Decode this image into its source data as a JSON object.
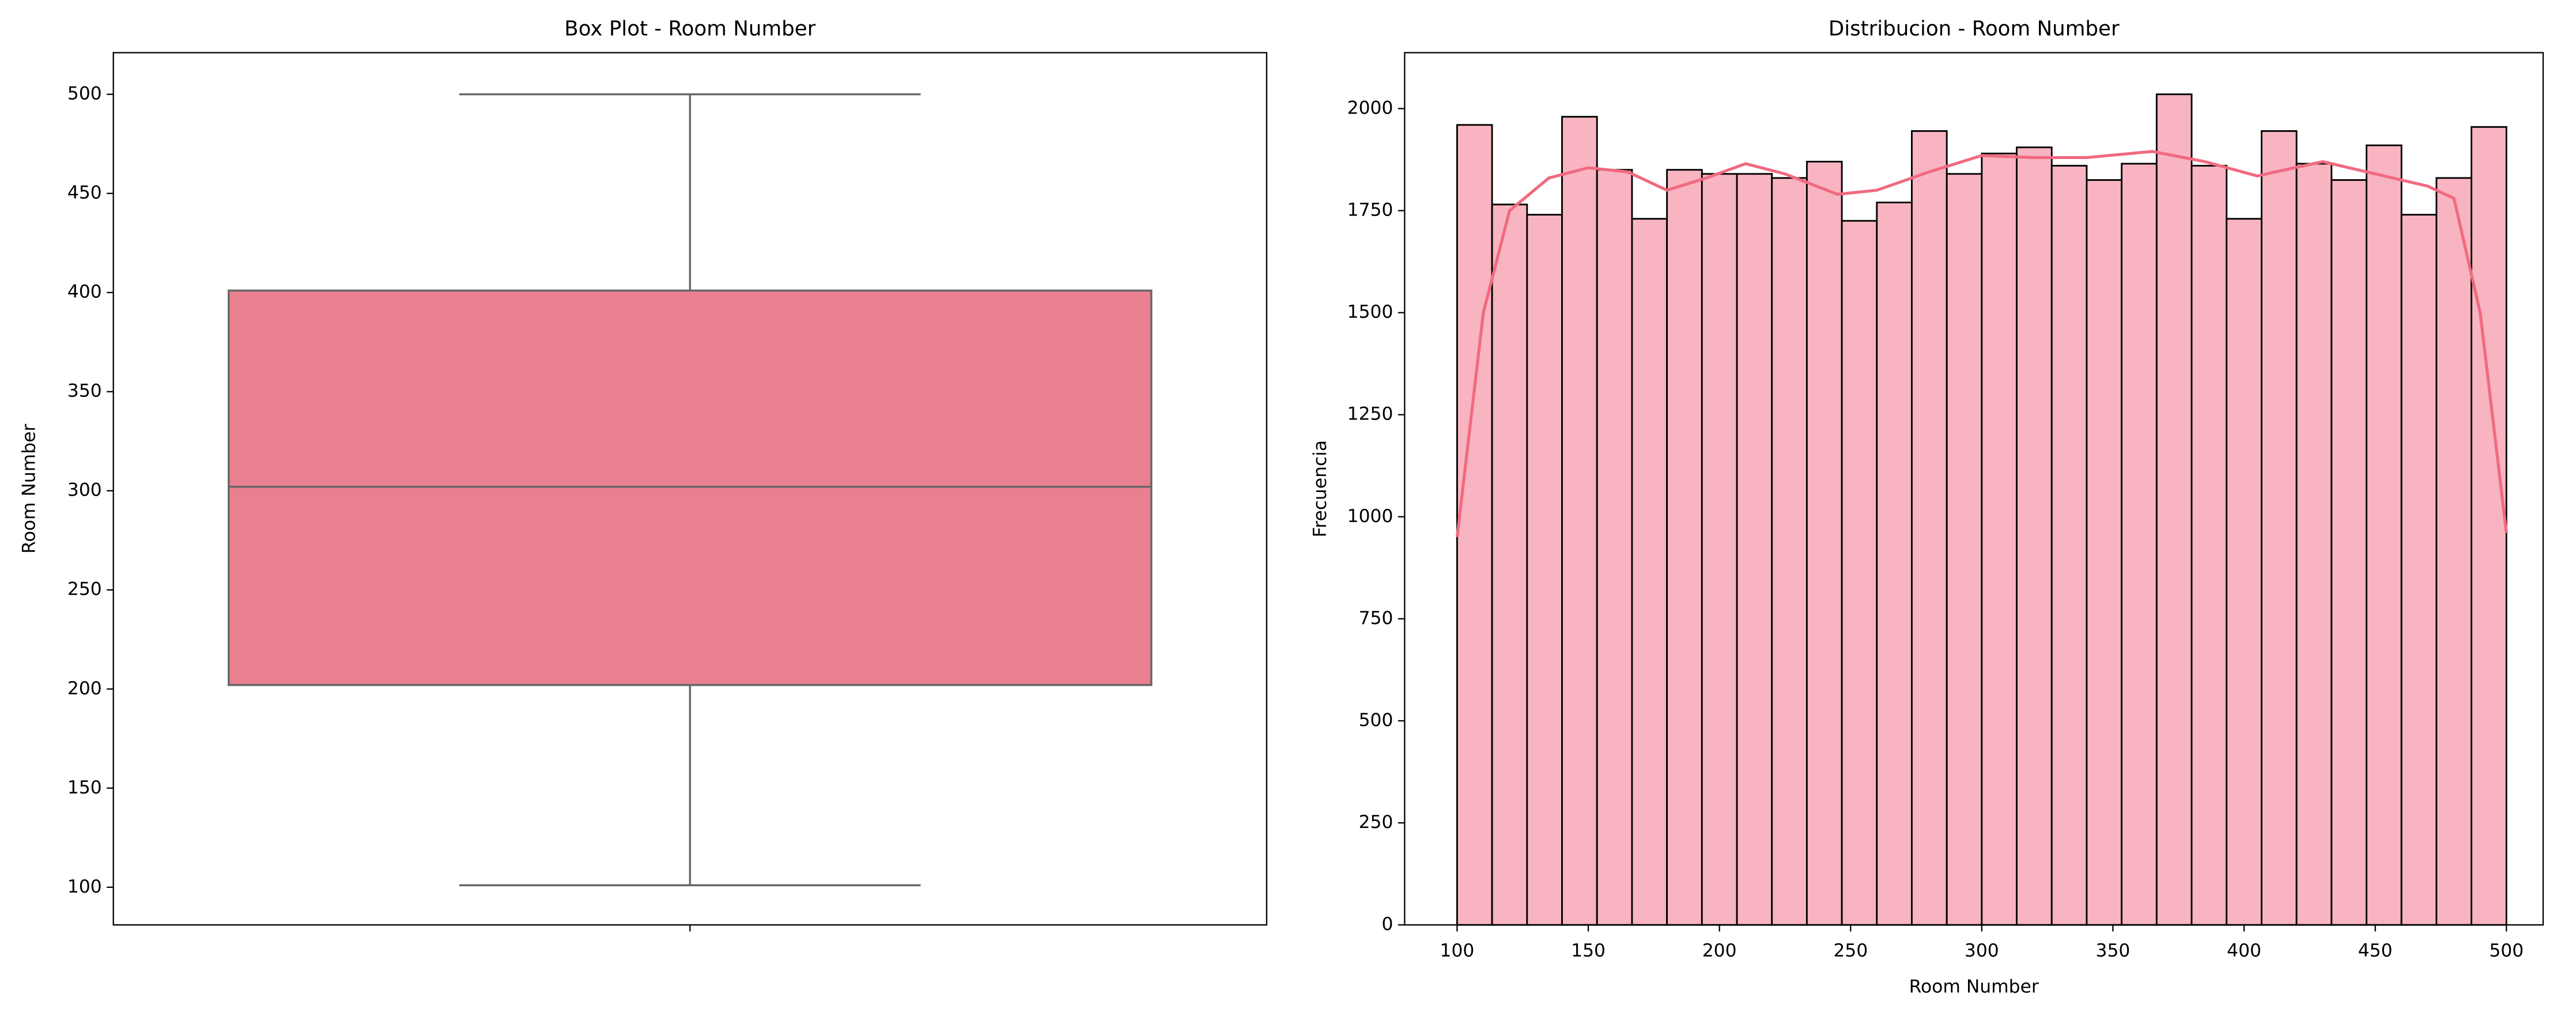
{
  "chart_data": [
    {
      "type": "box",
      "title": "Box Plot - Room Number",
      "ylabel": "Room Number",
      "ylim": [
        81,
        521
      ],
      "yticks": [
        100,
        150,
        200,
        250,
        300,
        350,
        400,
        450,
        500
      ],
      "stats": {
        "whisker_low": 101,
        "q1": 202,
        "median": 302,
        "q3": 401,
        "whisker_high": 500
      },
      "color": "#e8808f",
      "edge_color": "#666666"
    },
    {
      "type": "histogram",
      "title": "Distribucion - Room Number",
      "xlabel": "Room Number",
      "ylabel": "Frecuencia",
      "bins": [
        100,
        113.33,
        126.67,
        140,
        153.33,
        166.67,
        180,
        193.33,
        206.67,
        220,
        233.33,
        246.67,
        260,
        273.33,
        286.67,
        300,
        313.33,
        326.67,
        340,
        353.33,
        366.67,
        380,
        393.33,
        406.67,
        420,
        433.33,
        446.67,
        460,
        473.33,
        486.67,
        500
      ],
      "counts": [
        1960,
        1765,
        1740,
        1980,
        1850,
        1730,
        1850,
        1840,
        1840,
        1830,
        1870,
        1725,
        1770,
        1945,
        1840,
        1890,
        1905,
        1860,
        1825,
        1865,
        2035,
        1860,
        1730,
        1945,
        1865,
        1825,
        1910,
        1740,
        1830,
        1955
      ],
      "color": "#f8b4c1",
      "edge_color": "#000000",
      "kde": {
        "color": "#f06a80",
        "x": [
          100,
          110,
          120,
          135,
          150,
          165,
          180,
          195,
          210,
          225,
          245,
          260,
          280,
          300,
          320,
          340,
          365,
          385,
          405,
          430,
          450,
          470,
          480,
          490,
          500
        ],
        "y": [
          950,
          1500,
          1750,
          1830,
          1855,
          1845,
          1800,
          1830,
          1865,
          1840,
          1790,
          1800,
          1845,
          1885,
          1880,
          1880,
          1895,
          1870,
          1835,
          1870,
          1840,
          1810,
          1780,
          1500,
          960
        ]
      },
      "xlim": [
        80,
        514
      ],
      "xticks": [
        100,
        150,
        200,
        250,
        300,
        350,
        400,
        450,
        500
      ],
      "ylim": [
        0,
        2137
      ],
      "yticks": [
        0,
        250,
        500,
        750,
        1000,
        1250,
        1500,
        1750,
        2000
      ]
    }
  ]
}
